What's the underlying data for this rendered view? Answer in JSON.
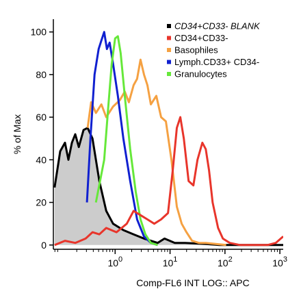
{
  "chart_data": {
    "type": "line",
    "xlabel": "Comp-FL6 INT LOG:: APC",
    "ylabel": "% of Max",
    "xscale": "log",
    "xlim": [
      0.075,
      1150
    ],
    "ylim": [
      -2,
      106
    ],
    "yticks": [
      0,
      20,
      40,
      60,
      80,
      100
    ],
    "xticks": [
      {
        "value": 1,
        "label": "10",
        "exponent": "0"
      },
      {
        "value": 10,
        "label": "10",
        "exponent": "1"
      },
      {
        "value": 100,
        "label": "10",
        "exponent": "2"
      },
      {
        "value": 1000,
        "label": "10",
        "exponent": "3"
      }
    ],
    "xminorticks": [
      0.08,
      0.09,
      0.2,
      0.3,
      0.4,
      0.5,
      0.6,
      0.7,
      0.8,
      0.9,
      2,
      3,
      4,
      5,
      6,
      7,
      8,
      9,
      20,
      30,
      40,
      50,
      60,
      70,
      80,
      90,
      200,
      300,
      400,
      500,
      600,
      700,
      800,
      900
    ],
    "legend": "upper right",
    "series": [
      {
        "name": "CD34+CD33- BLANK",
        "italic": true,
        "color": "#000000",
        "fill": "#cccccc",
        "x": [
          0.079,
          0.1,
          0.122,
          0.141,
          0.163,
          0.188,
          0.218,
          0.266,
          0.316,
          0.387,
          0.516,
          0.688,
          0.917,
          1.41,
          2.17,
          3.35,
          5.96,
          7.94,
          12.2,
          18.8,
          44.7,
          79.4,
          1150
        ],
        "values": [
          27,
          44,
          48,
          40,
          48,
          52,
          46,
          54,
          55,
          50,
          30,
          16,
          10,
          7,
          5,
          3,
          1,
          3,
          1,
          1,
          0.5,
          0,
          0
        ]
      },
      {
        "name": "CD34+CD33-",
        "color": "#e8352b",
        "x": [
          0.079,
          0.122,
          0.188,
          0.29,
          0.387,
          0.516,
          0.688,
          1.06,
          1.63,
          2.17,
          2.9,
          3.87,
          5.16,
          6.87,
          9.17,
          11.2,
          13.3,
          15.4,
          17.8,
          21.8,
          26.6,
          31.6,
          38.7,
          44.7,
          51.3,
          59.6,
          75,
          91.6,
          122,
          188,
          596,
          841,
          1150
        ],
        "values": [
          0,
          2,
          1,
          3,
          6,
          5,
          8,
          6,
          10,
          16,
          14,
          12,
          10,
          12,
          15,
          35,
          55,
          60,
          50,
          30,
          28,
          40,
          48,
          45,
          35,
          20,
          8,
          3,
          1,
          0,
          0,
          1,
          4
        ]
      },
      {
        "name": "Basophiles",
        "color": "#f5a142",
        "x": [
          0.316,
          0.365,
          0.447,
          0.562,
          0.688,
          0.917,
          1.22,
          1.5,
          1.78,
          2.17,
          2.51,
          2.9,
          3.35,
          3.87,
          4.47,
          5.62,
          6.87,
          8.41,
          10.6,
          13.3,
          16.3,
          19.9,
          25.1,
          33.5,
          44.7,
          105
        ],
        "values": [
          55,
          67,
          62,
          66,
          60,
          65,
          68,
          72,
          67,
          75,
          78,
          87,
          80,
          75,
          66,
          70,
          60,
          58,
          40,
          18,
          10,
          6,
          2,
          1,
          1,
          0
        ]
      },
      {
        "name": "Lymph.CD33+ CD34-",
        "color": "#1020d0",
        "x": [
          0.307,
          0.355,
          0.422,
          0.501,
          0.562,
          0.631,
          0.708,
          0.794,
          0.917,
          1.12,
          1.41,
          1.88,
          2.51,
          3.35,
          4.47,
          5.96
        ],
        "values": [
          20,
          50,
          80,
          92,
          96,
          100,
          92,
          95,
          85,
          70,
          50,
          30,
          12,
          4,
          1,
          0
        ]
      },
      {
        "name": "Granulocytes",
        "color": "#66e83a",
        "x": [
          0.447,
          0.631,
          0.75,
          0.866,
          1,
          1.12,
          1.26,
          1.5,
          1.88,
          2.37,
          2.9,
          3.55,
          4.47,
          5.96
        ],
        "values": [
          20,
          40,
          65,
          85,
          97,
          98,
          90,
          70,
          45,
          25,
          12,
          5,
          1,
          0
        ]
      }
    ]
  }
}
